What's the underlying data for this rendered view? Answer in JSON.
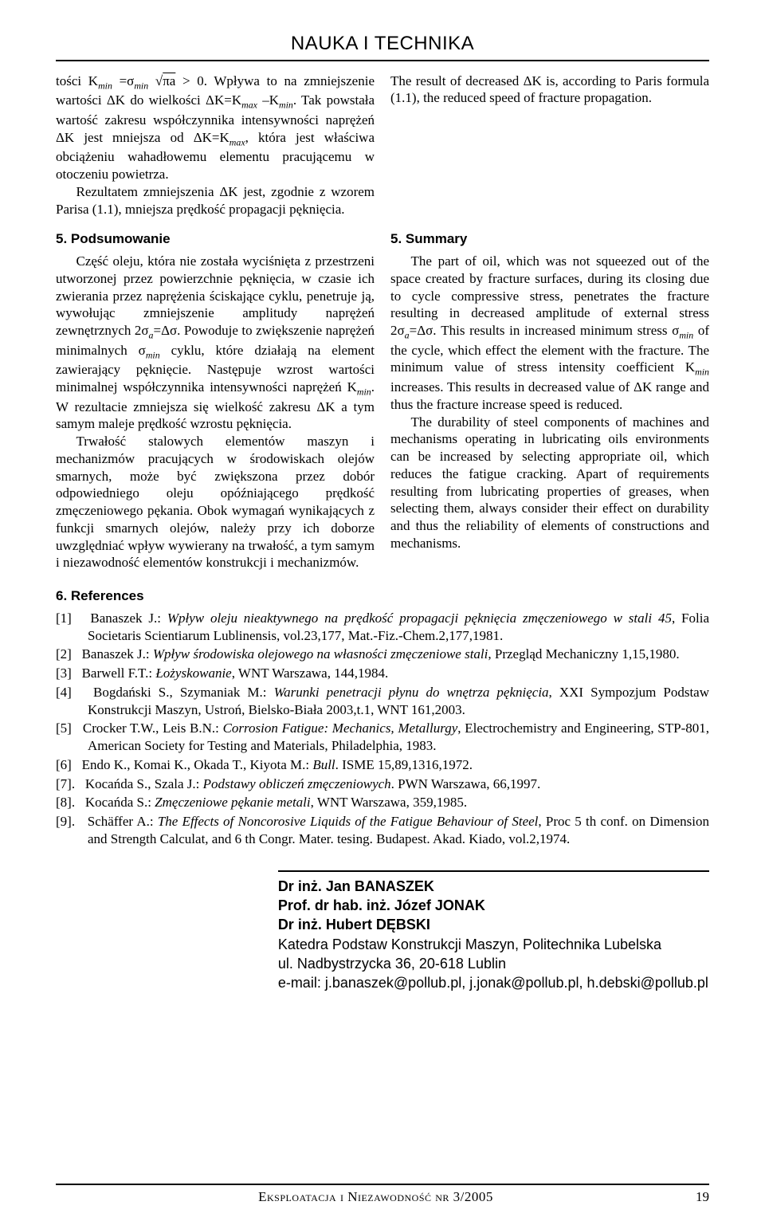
{
  "header": {
    "title": "NAUKA I TECHNIKA"
  },
  "left_intro": {
    "p1_a": "tości K",
    "p1_b": " =σ",
    "p1_c": " > 0. Wpływa to na zmniejszenie wartości ΔK do wielkości ΔK=K",
    "p1_d": " –K",
    "p1_e": ". Tak powstała wartość zakresu współczynnika intensywności naprężeń ΔK jest mniejsza od ΔK=K",
    "p1_f": ", która jest właściwa obciążeniu wahadłowemu elementu pracującemu w otoczeniu powietrza.",
    "p2": "Rezultatem zmniejszenia ΔK jest, zgodnie z wzorem Parisa (1.1), mniejsza prędkość propagacji pęknięcia."
  },
  "right_intro": {
    "p1": "The result of decreased ΔK is, according to Paris formula (1.1), the reduced speed of fracture propagation."
  },
  "section5_pl": {
    "title": "5. Podsumowanie",
    "p1_a": "Część oleju, która nie została wyciśnięta z przestrzeni utworzonej przez powierzchnie pęknięcia, w czasie ich zwierania przez naprężenia ściskające cyklu, penetruje ją, wywołując zmniejszenie amplitudy naprężeń zewnętrznych 2σ",
    "p1_b": "=Δσ. Powoduje to zwiększenie naprężeń minimalnych σ",
    "p1_c": " cyklu, które działają na element zawierający pęknięcie. Następuje wzrost wartości minimalnej współczynnika intensywności naprężeń K",
    "p1_d": ". W rezultacie zmniejsza się wielkość zakresu ΔK a tym samym maleje prędkość wzrostu pęknięcia.",
    "p2": "Trwałość stalowych elementów maszyn i mechanizmów pracujących w środowiskach olejów smarnych, może być zwiększona przez dobór odpowiedniego oleju opóźniającego prędkość zmęczeniowego pękania. Obok wymagań wynikających z funkcji smarnych olejów, należy przy ich doborze uwzględniać wpływ wywierany na trwałość, a tym samym i niezawodność elementów konstrukcji i mechanizmów."
  },
  "section5_en": {
    "title": "5. Summary",
    "p1_a": "The part of oil, which was not squeezed out of the space created by fracture surfaces, during its closing due to cycle compressive stress, penetrates the fracture resulting in decreased amplitude of external stress 2σ",
    "p1_b": "=Δσ. This results in increased minimum stress σ",
    "p1_c": " of the cycle, which effect the element with the fracture. The minimum value of stress intensity coefficient K",
    "p1_d": " increases. This results in decreased value of ΔK range and thus the fracture increase speed is reduced.",
    "p2": "The durability of steel components of machines and mechanisms operating in lubricating oils environments can be increased by selecting appropriate oil, which reduces the fatigue cracking. Apart of requirements resulting from lubricating properties of greases, when selecting them, always consider their effect on durability and thus the reliability of elements of constructions and mechanisms."
  },
  "refs": {
    "title": "6. References",
    "items": [
      {
        "n": "[1]",
        "pre": "Banaszek J.: ",
        "it": "Wpływ oleju nieaktywnego na prędkość propagacji pęknięcia zmęczeniowego w stali 45",
        "post": ", Folia Societaris Scientiarum Lublinensis, vol.23,177, Mat.-Fiz.-Chem.2,177,1981."
      },
      {
        "n": "[2]",
        "pre": "Banaszek J.: ",
        "it": "Wpływ środowiska olejowego na własności zmęczeniowe stali",
        "post": ", Przegląd Mechaniczny 1,15,1980."
      },
      {
        "n": "[3]",
        "pre": "Barwell F.T.: ",
        "it": "Łożyskowanie",
        "post": ", WNT Warszawa, 144,1984."
      },
      {
        "n": "[4]",
        "pre": "Bogdański S., Szymaniak M.: ",
        "it": "Warunki penetracji płynu do wnętrza pęknięcia",
        "post": ", XXI Sympozjum Podstaw Konstrukcji Maszyn, Ustroń, Bielsko-Biała 2003,t.1, WNT 161,2003."
      },
      {
        "n": "[5]",
        "pre": "Crocker T.W., Leis B.N.: ",
        "it": "Corrosion Fatigue: Mechanics, Metallurgy",
        "post": ", Electrochemistry and Engineering, STP-801, American Society for Testing and Materials, Philadelphia, 1983."
      },
      {
        "n": "[6]",
        "pre": "Endo K., Komai K., Okada T., Kiyota M.: ",
        "it": "Bull",
        "post": ". ISME 15,89,1316,1972."
      },
      {
        "n": "[7].",
        "pre": "Kocańda S., Szala J.: ",
        "it": "Podstawy obliczeń zmęczeniowych",
        "post": ". PWN Warszawa, 66,1997."
      },
      {
        "n": "[8].",
        "pre": "Kocańda S.: ",
        "it": "Zmęczeniowe pękanie metali",
        "post": ", WNT Warszawa, 359,1985."
      },
      {
        "n": "[9].",
        "pre": "Schäffer A.: ",
        "it": "The Effects of Noncorosive Liquids of the Fatigue Behaviour of Steel",
        "post": ", Proc 5 th conf. on Dimension and Strength Calculat, and 6 th Congr.  Mater.  tesing.  Budapest.  Akad.  Kiado,  vol.2,1974."
      }
    ]
  },
  "authors": {
    "a1": "Dr inż. Jan BANASZEK",
    "a2": "Prof. dr hab. inż. Józef JONAK",
    "a3": "Dr inż. Hubert DĘBSKI",
    "dept": "Katedra Podstaw Konstrukcji Maszyn, Politechnika Lubelska",
    "addr": "ul. Nadbystrzycka 36, 20-618 Lublin",
    "mail": "e-mail: j.banaszek@pollub.pl, j.jonak@pollub.pl, h.debski@pollub.pl"
  },
  "footer": {
    "text": "Eksploatacja i Niezawodność nr 3/2005",
    "page": "19"
  },
  "sub": {
    "min": "min",
    "max": "max",
    "a": "a"
  },
  "math": {
    "pi_a": "πa"
  }
}
